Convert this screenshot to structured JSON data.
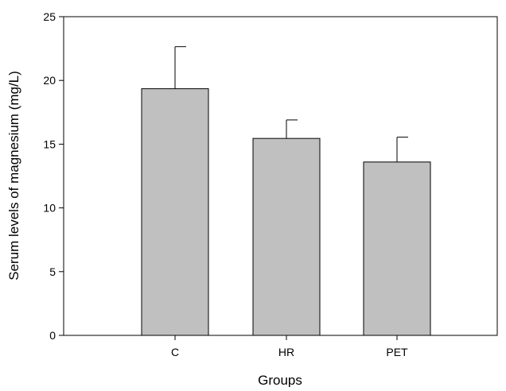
{
  "chart_data": {
    "type": "bar",
    "title": "",
    "xlabel": "Groups",
    "ylabel": "Serum levels of magnesium (mg/L)",
    "ylim": [
      0,
      25
    ],
    "yticks": [
      0,
      5,
      10,
      15,
      20,
      25
    ],
    "categories": [
      "C",
      "HR",
      "PET"
    ],
    "values": [
      19.35,
      15.45,
      13.6
    ],
    "error_upper": [
      3.3,
      1.45,
      1.95
    ],
    "grid": false,
    "legend": "none",
    "bar_color": "#c0c0c0",
    "bar_edge_color": "#000000"
  }
}
